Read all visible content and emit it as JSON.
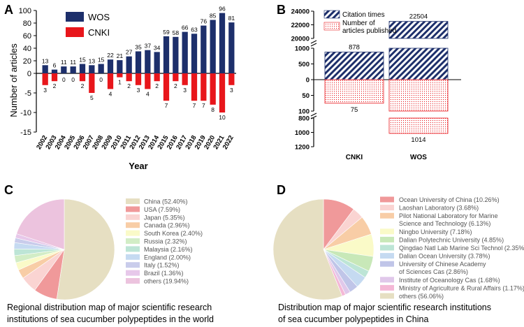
{
  "panel_letters": [
    "A",
    "B",
    "C",
    "D"
  ],
  "colors": {
    "wos": "#1d2f6b",
    "cnki": "#e8161b"
  },
  "chart_data": [
    {
      "panel": "A",
      "type": "bar",
      "xlabel": "Year",
      "ylabel": "Number of articles",
      "ylim": [
        -15,
        100
      ],
      "yticks_upper": [
        0,
        20,
        40,
        60,
        80,
        100
      ],
      "yticks_lower": [
        -15,
        -10,
        -5,
        0
      ],
      "legend_placement": "top-left",
      "categories": [
        "2002",
        "2003",
        "2004",
        "2005",
        "2006",
        "2007",
        "2008",
        "2009",
        "2010",
        "2011",
        "2012",
        "2013",
        "2014",
        "2015",
        "2016",
        "2017",
        "2018",
        "2019",
        "2020",
        "2021",
        "2022"
      ],
      "series": [
        {
          "name": "WOS",
          "values": [
            13,
            6,
            11,
            11,
            15,
            13,
            15,
            22,
            21,
            27,
            35,
            37,
            34,
            59,
            58,
            66,
            63,
            76,
            85,
            96,
            81
          ]
        },
        {
          "name": "CNKI",
          "values": [
            3,
            2,
            0,
            0,
            2,
            5,
            0,
            4,
            1,
            2,
            3,
            4,
            2,
            7,
            2,
            3,
            7,
            7,
            8,
            10,
            3
          ]
        }
      ]
    },
    {
      "panel": "B",
      "type": "bar",
      "categories": [
        "CNKI",
        "WOS"
      ],
      "series": [
        {
          "name": "Citation times",
          "values": [
            878,
            22504
          ]
        },
        {
          "name": "Number of articles published",
          "values": [
            75,
            1014
          ]
        }
      ],
      "yticks_upper_break": [
        20000,
        22000,
        24000
      ],
      "yticks_upper": [
        0,
        500,
        1000
      ],
      "yticks_lower": [
        0,
        50,
        100
      ],
      "yticks_lower_break": [
        800,
        1000,
        1200
      ],
      "legend_placement": "top-left"
    },
    {
      "panel": "C",
      "type": "pie",
      "slices": [
        {
          "label": "China (52.40%)",
          "value": 52.4,
          "color": "#e6dfc2"
        },
        {
          "label": "USA (7.59%)",
          "value": 7.59,
          "color": "#f0999a"
        },
        {
          "label": "Japan (5.35%)",
          "value": 5.35,
          "color": "#fad4d2"
        },
        {
          "label": "Canada (2.96%)",
          "value": 2.96,
          "color": "#f8cda6"
        },
        {
          "label": "South Korea (2.40%)",
          "value": 2.4,
          "color": "#fafac8"
        },
        {
          "label": "Russia (2.32%)",
          "value": 2.32,
          "color": "#d2edc6"
        },
        {
          "label": "Malaysia (2.16%)",
          "value": 2.16,
          "color": "#bde5d6"
        },
        {
          "label": "England (2.00%)",
          "value": 2.0,
          "color": "#c5daf1"
        },
        {
          "label": "Italy (1.52%)",
          "value": 1.52,
          "color": "#c9cceb"
        },
        {
          "label": "Brazil (1.36%)",
          "value": 1.36,
          "color": "#e7c8ea"
        },
        {
          "label": "others (19.94%)",
          "value": 19.94,
          "color": "#ecc3de"
        }
      ],
      "caption_lines": [
        "Regional distribution map of major scientific research",
        "institutions of sea cucumber polypeptides in the world"
      ]
    },
    {
      "panel": "D",
      "type": "pie",
      "slices": [
        {
          "label_lines": [
            "Ocean University of China (10.26%)"
          ],
          "value": 10.26,
          "color": "#f0999a"
        },
        {
          "label_lines": [
            "Laoshan Laboratory (3.68%)"
          ],
          "value": 3.68,
          "color": "#fad4d2"
        },
        {
          "label_lines": [
            "Pilot National Laboratory for Marine",
            "Science and Technology (6.13%)"
          ],
          "value": 6.13,
          "color": "#f8cda6"
        },
        {
          "label_lines": [
            "Ningbo University (7.18%)"
          ],
          "value": 7.18,
          "color": "#fafac8"
        },
        {
          "label_lines": [
            "Dalian Polytechnic University (4.85%)"
          ],
          "value": 4.85,
          "color": "#c8e8b8"
        },
        {
          "label_lines": [
            "Qingdao Natl Lab Marine Sci Technol (2.35%)"
          ],
          "value": 2.35,
          "color": "#bde5d6"
        },
        {
          "label_lines": [
            "Dalian Ocean University (3.78%)"
          ],
          "value": 3.78,
          "color": "#c5daf1"
        },
        {
          "label_lines": [
            "University of Chinese Academy",
            "of Sciences Cas (2.86%)"
          ],
          "value": 2.86,
          "color": "#c0c5e8"
        },
        {
          "label_lines": [
            "Institute of Oceanology Cas (1.68%)"
          ],
          "value": 1.68,
          "color": "#e0c8ea"
        },
        {
          "label_lines": [
            "Ministry of Agriculture & Rural Affairs (1.17%)"
          ],
          "value": 1.17,
          "color": "#f4b8d6"
        },
        {
          "label_lines": [
            "others (56.06%)"
          ],
          "value": 56.06,
          "color": "#e6dfc2"
        }
      ],
      "caption_lines": [
        "Distribution map of major scientific research institutions",
        "of sea cucumber polypeptides in China"
      ]
    }
  ]
}
